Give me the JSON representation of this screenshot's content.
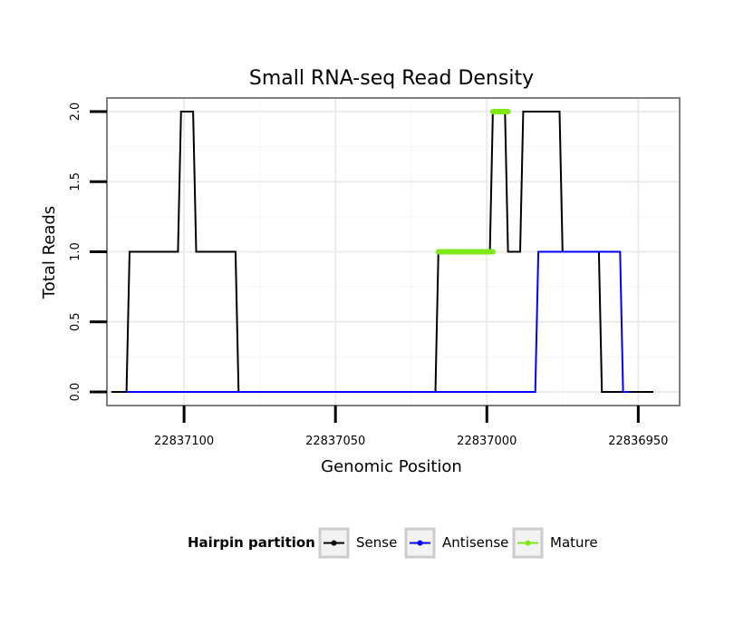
{
  "chart_data": {
    "type": "line",
    "title": "Small RNA-seq Read Density",
    "xlabel": "Genomic Position",
    "ylabel": "Total Reads",
    "x_reversed": true,
    "xlim": [
      22837130,
      22836940
    ],
    "ylim": [
      0,
      2.0
    ],
    "x_ticks": [
      22837100,
      22837050,
      22837000,
      22836950
    ],
    "x_tick_labels": [
      "22837100",
      "22837050",
      "22837000",
      "22836950"
    ],
    "y_ticks": [
      0,
      0.5,
      1,
      1.5,
      2
    ],
    "y_tick_labels": [
      "0.0",
      "0.5",
      "1.0",
      "1.5",
      "2.0"
    ],
    "legend": {
      "title": "Hairpin partition",
      "position": "bottom",
      "entries": [
        {
          "name": "Sense",
          "color": "#000000"
        },
        {
          "name": "Antisense",
          "color": "#0000ff"
        },
        {
          "name": "Mature",
          "color": "#7fe617"
        }
      ]
    },
    "series": [
      {
        "name": "Sense",
        "color": "#000000",
        "x": [
          22837124,
          22837119,
          22837118,
          22837102,
          22837101,
          22837097,
          22837096,
          22837083,
          22837082,
          22837066,
          22837065,
          22837017,
          22837016,
          22836999,
          22836998,
          22836994,
          22836993,
          22836989,
          22836988,
          22836976,
          22836975,
          22836963,
          22836962,
          22836945
        ],
        "y": [
          0,
          0,
          1,
          1,
          2,
          2,
          1,
          1,
          0,
          0,
          0,
          0,
          1,
          1,
          2,
          2,
          1,
          1,
          2,
          2,
          1,
          1,
          0,
          0
        ]
      },
      {
        "name": "Antisense",
        "color": "#0000ff",
        "x": [
          22837119,
          22836984,
          22836983,
          22836956,
          22836955,
          22836953
        ],
        "y": [
          0,
          0,
          1,
          1,
          0,
          0
        ]
      },
      {
        "name": "Mature",
        "color": "#7fe617",
        "segments": [
          {
            "x": [
              22837016,
              22836998
            ],
            "y": [
              1,
              1
            ]
          },
          {
            "x": [
              22836998,
              22836993
            ],
            "y": [
              2,
              2
            ]
          }
        ]
      }
    ]
  }
}
